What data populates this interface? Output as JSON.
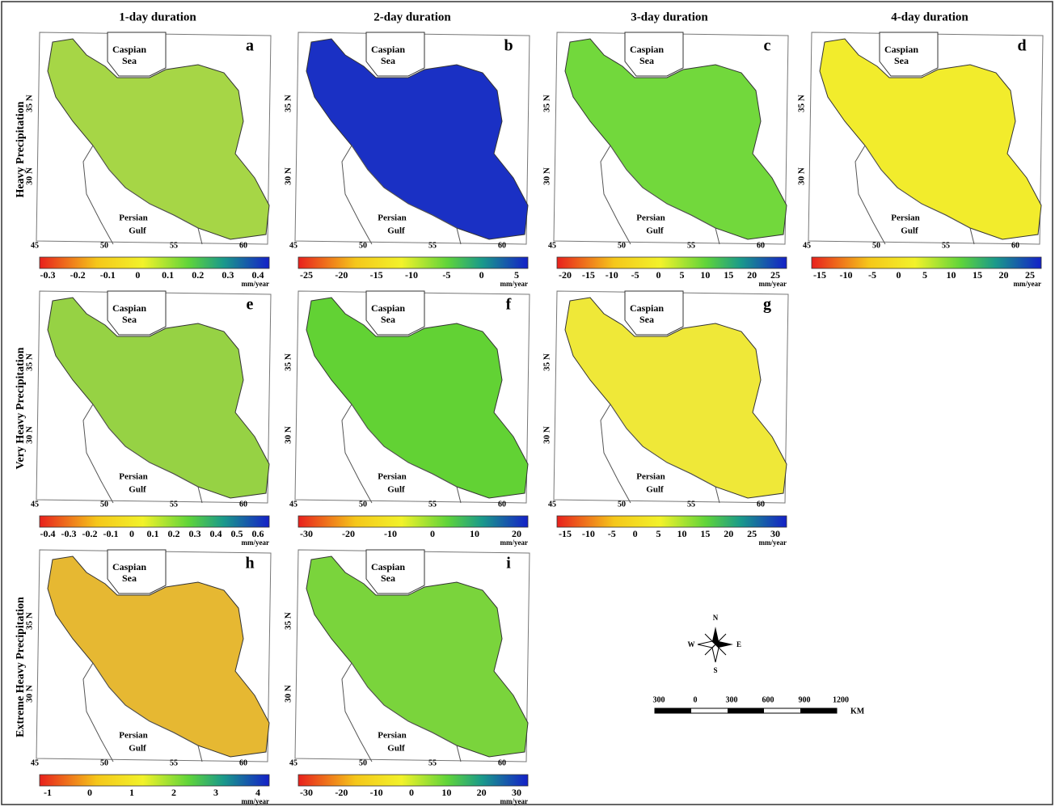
{
  "columns": [
    "1-day duration",
    "2-day duration",
    "3-day duration",
    "4-day duration"
  ],
  "rows": [
    {
      "label": "Heavy Precipitation",
      "panels": [
        {
          "letter": "a",
          "sea": [
            "Caspian",
            "Sea"
          ],
          "gulf": [
            "Persian",
            "Gulf"
          ],
          "lat": [
            "35 N",
            "30 N"
          ],
          "lon": [
            "45",
            "50",
            "55",
            "60"
          ],
          "ticks": [
            "-0.3",
            "-0.2",
            "-0.1",
            "0",
            "0.1",
            "0.2",
            "0.3",
            "0.4"
          ],
          "unit": "mm/year",
          "color": "#a6d646"
        },
        {
          "letter": "b",
          "sea": [
            "Caspian",
            "Sea"
          ],
          "gulf": [
            "Persian",
            "Gulf"
          ],
          "lat": [
            "35 N",
            "30 N"
          ],
          "lon": [
            "45",
            "50",
            "55",
            "60"
          ],
          "ticks": [
            "-25",
            "-20",
            "-15",
            "-10",
            "-5",
            "0",
            "5"
          ],
          "unit": "mm/year",
          "color": "#1a30c4"
        },
        {
          "letter": "c",
          "sea": [
            "Caspian",
            "Sea"
          ],
          "gulf": [
            "Persian",
            "Gulf"
          ],
          "lat": [
            "35 N",
            "30 N"
          ],
          "lon": [
            "45",
            "50",
            "55",
            "60"
          ],
          "ticks": [
            "-20",
            "-15",
            "-10",
            "-5",
            "0",
            "5",
            "10",
            "15",
            "20",
            "25"
          ],
          "unit": "mm/year",
          "color": "#72d83c"
        },
        {
          "letter": "d",
          "sea": [
            "Caspian",
            "Sea"
          ],
          "gulf": [
            "Persian",
            "Gulf"
          ],
          "lat": [
            "35 N",
            "30 N"
          ],
          "lon": [
            "45",
            "50",
            "55",
            "60"
          ],
          "ticks": [
            "-15",
            "-10",
            "-5",
            "0",
            "5",
            "10",
            "15",
            "20",
            "25"
          ],
          "unit": "mm/year",
          "color": "#f2ec2c"
        }
      ]
    },
    {
      "label": "Very Heavy Precipitation",
      "panels": [
        {
          "letter": "e",
          "sea": [
            "Caspian",
            "Sea"
          ],
          "gulf": [
            "Persian",
            "Gulf"
          ],
          "lat": [
            "35 N",
            "30 N"
          ],
          "lon": [
            "45",
            "50",
            "55",
            "60"
          ],
          "ticks": [
            "-0.4",
            "-0.3",
            "-0.2",
            "-0.1",
            "0",
            "0.1",
            "0.2",
            "0.3",
            "0.4",
            "0.5",
            "0.6"
          ],
          "unit": "mm/year",
          "color": "#96d244"
        },
        {
          "letter": "f",
          "sea": [
            "Caspian",
            "Sea"
          ],
          "gulf": [
            "Persian",
            "Gulf"
          ],
          "lat": [
            "35 N",
            "30 N"
          ],
          "lon": [
            "45",
            "50",
            "55",
            "60"
          ],
          "ticks": [
            "-30",
            "-20",
            "-10",
            "0",
            "10",
            "20"
          ],
          "unit": "mm/year",
          "color": "#62d234"
        },
        {
          "letter": "g",
          "sea": [
            "Caspian",
            "Sea"
          ],
          "gulf": [
            "Persian",
            "Gulf"
          ],
          "lat": [
            "35 N",
            "30 N"
          ],
          "lon": [
            "45",
            "50",
            "55",
            "60"
          ],
          "ticks": [
            "-15",
            "-10",
            "-5",
            "0",
            "5",
            "10",
            "15",
            "20",
            "25",
            "30"
          ],
          "unit": "mm/year",
          "color": "#efe838"
        }
      ]
    },
    {
      "label": "Extreme Heavy Precipitation",
      "panels": [
        {
          "letter": "h",
          "sea": [
            "Caspian",
            "Sea"
          ],
          "gulf": [
            "Persian",
            "Gulf"
          ],
          "lat": [
            "35 N",
            "30 N"
          ],
          "lon": [
            "45",
            "50",
            "55",
            "60"
          ],
          "ticks": [
            "-1",
            "0",
            "1",
            "2",
            "3",
            "4"
          ],
          "unit": "mm/year",
          "color": "#e6b832"
        },
        {
          "letter": "i",
          "sea": [
            "Caspian",
            "Sea"
          ],
          "gulf": [
            "Persian",
            "Gulf"
          ],
          "lat": [
            "35 N",
            "30 N"
          ],
          "lon": [
            "45",
            "50",
            "55",
            "60"
          ],
          "ticks": [
            "-30",
            "-20",
            "-10",
            "0",
            "10",
            "20",
            "30"
          ],
          "unit": "mm/year",
          "color": "#7ad43c"
        }
      ]
    }
  ],
  "compass": {
    "n": "N",
    "s": "S",
    "e": "E",
    "w": "W"
  },
  "scale": {
    "ticks": [
      "300",
      "0",
      "300",
      "600",
      "900",
      "1200"
    ],
    "unit": "KM"
  }
}
